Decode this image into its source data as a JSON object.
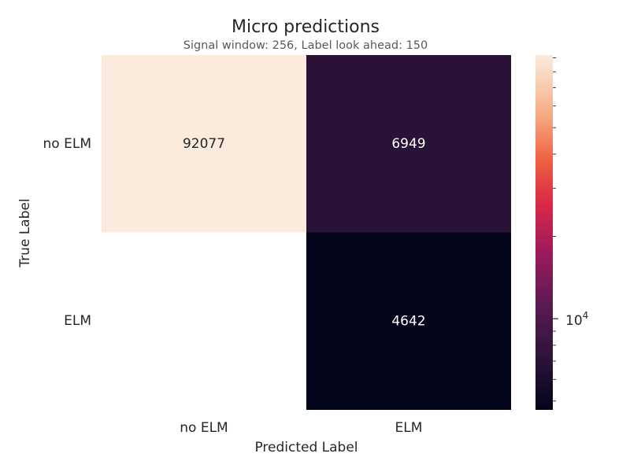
{
  "chart_data": {
    "type": "heatmap",
    "title": "Micro predictions",
    "subtitle": "Signal window: 256, Label look ahead: 150",
    "xlabel": "Predicted Label",
    "ylabel": "True Label",
    "x_categories": [
      "no ELM",
      "ELM"
    ],
    "y_categories": [
      "no ELM",
      "ELM"
    ],
    "cells": [
      [
        {
          "value": 92077,
          "label": "92077"
        },
        {
          "value": 6949,
          "label": "6949"
        }
      ],
      [
        {
          "value": null,
          "label": ""
        },
        {
          "value": 4642,
          "label": "4642"
        }
      ]
    ],
    "colorbar": {
      "scale": "log",
      "colormap": "rocket",
      "range": [
        4642,
        92077
      ],
      "major_tick_label": "10",
      "major_tick_exponent": "4"
    },
    "grid": false
  }
}
